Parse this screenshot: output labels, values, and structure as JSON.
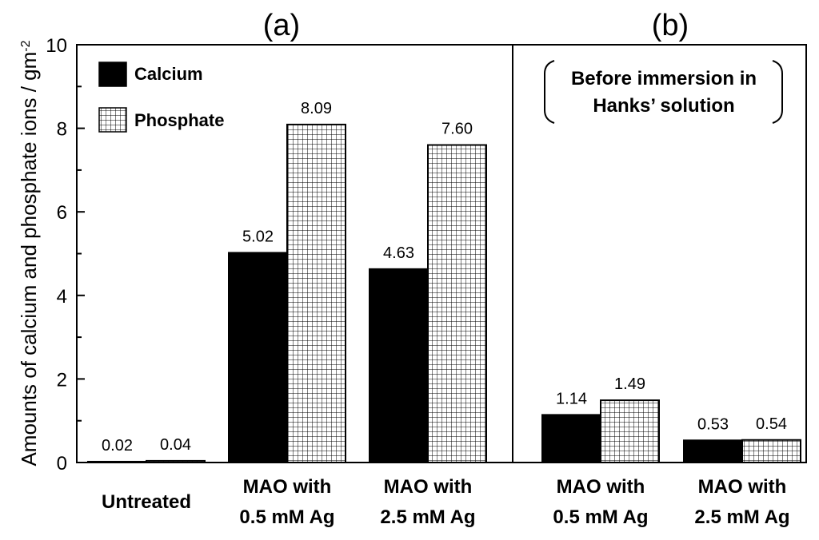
{
  "chart_data": {
    "type": "bar",
    "ylabel": "Amounts of calcium and phosphate ions / gm",
    "ylabel_sup": "-2",
    "ylim": [
      0,
      10
    ],
    "yticks": [
      "0",
      "2",
      "4",
      "6",
      "8",
      "10"
    ],
    "legend": [
      {
        "name": "Calcium",
        "fill": "solid-black"
      },
      {
        "name": "Phosphate",
        "fill": "grid-hatch"
      }
    ],
    "panels": [
      {
        "title": "(a)",
        "groups": [
          {
            "line1": "Untreated",
            "line2": "",
            "calcium": 0.02,
            "phosphate": 0.04,
            "calcium_label": "0.02",
            "phosphate_label": "0.04"
          },
          {
            "line1": "MAO with",
            "line2": "0.5 mM Ag",
            "calcium": 5.02,
            "phosphate": 8.09,
            "calcium_label": "5.02",
            "phosphate_label": "8.09"
          },
          {
            "line1": "MAO with",
            "line2": "2.5 mM Ag",
            "calcium": 4.63,
            "phosphate": 7.6,
            "calcium_label": "4.63",
            "phosphate_label": "7.60"
          }
        ]
      },
      {
        "title": "(b)",
        "note_line1": "Before immersion in",
        "note_line2": "Hanks’ solution",
        "groups": [
          {
            "line1": "MAO with",
            "line2": "0.5 mM Ag",
            "calcium": 1.14,
            "phosphate": 1.49,
            "calcium_label": "1.14",
            "phosphate_label": "1.49"
          },
          {
            "line1": "MAO with",
            "line2": "2.5 mM Ag",
            "calcium": 0.53,
            "phosphate": 0.54,
            "calcium_label": "0.53",
            "phosphate_label": "0.54"
          }
        ]
      }
    ]
  }
}
